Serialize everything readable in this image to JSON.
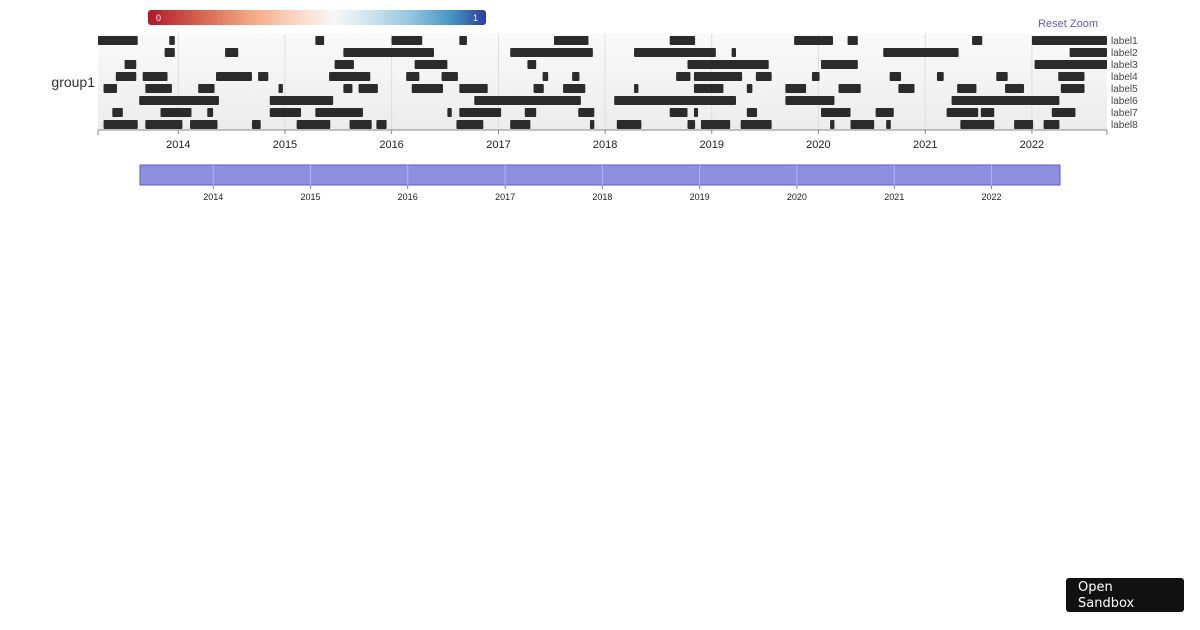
{
  "legend": {
    "min_label": "0",
    "max_label": "1",
    "gradient": [
      "#b2182b",
      "#f4a582",
      "#f7f7f7",
      "#92c5de",
      "#2c3e99"
    ]
  },
  "reset_zoom_label": "Reset Zoom",
  "sandbox_label": "Open Sandbox",
  "colors": {
    "bar": "#2b2b2b",
    "brush": "#8f8fe0",
    "brush_border": "#5a5ad6"
  },
  "chart_data": {
    "type": "timeline",
    "group": "group1",
    "x_domain": [
      "2013-04-01",
      "2022-09-15"
    ],
    "x_ticks": [
      "2014",
      "2015",
      "2016",
      "2017",
      "2018",
      "2019",
      "2020",
      "2021",
      "2022"
    ],
    "brush_ticks": [
      "2014",
      "2015",
      "2016",
      "2017",
      "2018",
      "2019",
      "2020",
      "2021",
      "2022"
    ],
    "lanes": [
      {
        "name": "label1",
        "segments": [
          [
            "2013-04-01",
            "2013-08-15"
          ],
          [
            "2013-12-01",
            "2013-12-20"
          ],
          [
            "2015-04-15",
            "2015-05-15"
          ],
          [
            "2016-01-01",
            "2016-04-15"
          ],
          [
            "2016-08-20",
            "2016-09-15"
          ],
          [
            "2017-07-10",
            "2017-11-05"
          ],
          [
            "2018-08-10",
            "2018-11-05"
          ],
          [
            "2019-10-10",
            "2020-02-20"
          ],
          [
            "2020-04-10",
            "2020-05-15"
          ],
          [
            "2021-06-10",
            "2021-07-15"
          ],
          [
            "2022-01-01",
            "2022-09-15"
          ]
        ]
      },
      {
        "name": "label2",
        "segments": [
          [
            "2013-11-15",
            "2013-12-20"
          ],
          [
            "2014-06-10",
            "2014-07-25"
          ],
          [
            "2015-07-20",
            "2016-05-25"
          ],
          [
            "2017-02-10",
            "2017-11-20"
          ],
          [
            "2018-04-10",
            "2019-01-15"
          ],
          [
            "2019-03-10",
            "2019-03-25"
          ],
          [
            "2020-08-10",
            "2021-04-25"
          ],
          [
            "2022-05-10",
            "2022-09-15"
          ]
        ]
      },
      {
        "name": "label3",
        "segments": [
          [
            "2013-07-01",
            "2013-08-10"
          ],
          [
            "2015-06-20",
            "2015-08-25"
          ],
          [
            "2016-03-20",
            "2016-07-10"
          ],
          [
            "2017-04-10",
            "2017-05-10"
          ],
          [
            "2018-10-10",
            "2019-07-15"
          ],
          [
            "2020-01-10",
            "2020-05-15"
          ],
          [
            "2022-01-10",
            "2022-09-15"
          ]
        ]
      },
      {
        "name": "label4",
        "segments": [
          [
            "2013-06-01",
            "2013-08-10"
          ],
          [
            "2013-09-01",
            "2013-11-25"
          ],
          [
            "2014-05-10",
            "2014-09-10"
          ],
          [
            "2014-10-01",
            "2014-11-05"
          ],
          [
            "2015-06-01",
            "2015-10-20"
          ],
          [
            "2016-02-20",
            "2016-04-05"
          ],
          [
            "2016-06-20",
            "2016-08-15"
          ],
          [
            "2017-06-01",
            "2017-06-20"
          ],
          [
            "2017-09-10",
            "2017-10-05"
          ],
          [
            "2018-09-01",
            "2018-10-20"
          ],
          [
            "2018-11-01",
            "2019-04-15"
          ],
          [
            "2019-06-01",
            "2019-07-25"
          ],
          [
            "2019-12-10",
            "2020-01-05"
          ],
          [
            "2020-09-01",
            "2020-10-10"
          ],
          [
            "2021-02-10",
            "2021-03-05"
          ],
          [
            "2021-09-01",
            "2021-10-10"
          ],
          [
            "2022-04-01",
            "2022-06-30"
          ]
        ]
      },
      {
        "name": "label5",
        "segments": [
          [
            "2013-04-20",
            "2013-06-05"
          ],
          [
            "2013-09-10",
            "2013-12-10"
          ],
          [
            "2014-03-10",
            "2014-05-05"
          ],
          [
            "2014-12-10",
            "2014-12-25"
          ],
          [
            "2015-07-20",
            "2015-08-20"
          ],
          [
            "2015-09-10",
            "2015-11-15"
          ],
          [
            "2016-03-10",
            "2016-06-25"
          ],
          [
            "2016-08-20",
            "2016-11-25"
          ],
          [
            "2017-05-01",
            "2017-06-05"
          ],
          [
            "2017-08-10",
            "2017-10-25"
          ],
          [
            "2018-04-10",
            "2018-04-25"
          ],
          [
            "2018-11-01",
            "2019-02-10"
          ],
          [
            "2019-05-01",
            "2019-05-20"
          ],
          [
            "2019-09-10",
            "2019-11-20"
          ],
          [
            "2020-03-10",
            "2020-05-25"
          ],
          [
            "2020-10-01",
            "2020-11-25"
          ],
          [
            "2021-04-20",
            "2021-06-25"
          ],
          [
            "2021-10-01",
            "2021-12-05"
          ],
          [
            "2022-04-10",
            "2022-06-30"
          ]
        ]
      },
      {
        "name": "label6",
        "segments": [
          [
            "2013-08-20",
            "2014-05-20"
          ],
          [
            "2014-11-10",
            "2015-06-15"
          ],
          [
            "2016-10-10",
            "2017-10-10"
          ],
          [
            "2018-02-01",
            "2019-03-25"
          ],
          [
            "2019-09-10",
            "2020-02-25"
          ],
          [
            "2021-04-01",
            "2022-04-05"
          ]
        ]
      },
      {
        "name": "label7",
        "segments": [
          [
            "2013-05-20",
            "2013-06-25"
          ],
          [
            "2013-11-01",
            "2014-02-15"
          ],
          [
            "2014-04-10",
            "2014-04-30"
          ],
          [
            "2014-11-10",
            "2015-02-25"
          ],
          [
            "2015-04-15",
            "2015-09-25"
          ],
          [
            "2016-07-10",
            "2016-07-25"
          ],
          [
            "2016-08-20",
            "2017-01-10"
          ],
          [
            "2017-04-01",
            "2017-05-10"
          ],
          [
            "2017-10-01",
            "2017-11-25"
          ],
          [
            "2018-08-10",
            "2018-10-10"
          ],
          [
            "2018-11-01",
            "2018-11-15"
          ],
          [
            "2019-05-01",
            "2019-06-05"
          ],
          [
            "2020-01-10",
            "2020-04-20"
          ],
          [
            "2020-07-15",
            "2020-09-15"
          ],
          [
            "2021-03-15",
            "2021-07-01"
          ],
          [
            "2021-07-10",
            "2021-08-25"
          ],
          [
            "2022-03-10",
            "2022-05-30"
          ]
        ]
      },
      {
        "name": "label8",
        "segments": [
          [
            "2013-04-20",
            "2013-08-15"
          ],
          [
            "2013-09-10",
            "2014-01-15"
          ],
          [
            "2014-02-10",
            "2014-05-15"
          ],
          [
            "2014-09-10",
            "2014-10-10"
          ],
          [
            "2015-02-10",
            "2015-06-05"
          ],
          [
            "2015-08-10",
            "2015-10-25"
          ],
          [
            "2015-11-10",
            "2015-12-15"
          ],
          [
            "2016-08-10",
            "2016-11-10"
          ],
          [
            "2017-02-10",
            "2017-04-20"
          ],
          [
            "2017-11-10",
            "2017-11-25"
          ],
          [
            "2018-02-10",
            "2018-05-05"
          ],
          [
            "2018-10-10",
            "2018-11-05"
          ],
          [
            "2018-11-25",
            "2019-03-05"
          ],
          [
            "2019-04-10",
            "2019-07-25"
          ],
          [
            "2020-02-10",
            "2020-02-25"
          ],
          [
            "2020-04-20",
            "2020-07-10"
          ],
          [
            "2020-08-20",
            "2020-09-05"
          ],
          [
            "2021-05-01",
            "2021-08-25"
          ],
          [
            "2021-11-01",
            "2022-01-05"
          ],
          [
            "2022-02-10",
            "2022-04-05"
          ]
        ]
      }
    ]
  }
}
